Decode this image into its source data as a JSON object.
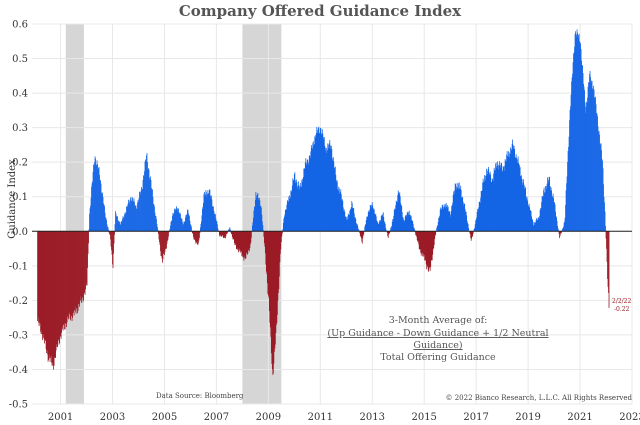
{
  "chart_data": {
    "type": "area",
    "title": "Company Offered Guidance Index",
    "ylabel": "Guidance Index",
    "xlabel": "",
    "ylim": [
      -0.5,
      0.6
    ],
    "xlim": [
      1999.9,
      2023.0
    ],
    "y_ticks": [
      {
        "value": 0.6,
        "label": "0.6"
      },
      {
        "value": 0.5,
        "label": "0.5"
      },
      {
        "value": 0.4,
        "label": "0.4"
      },
      {
        "value": 0.3,
        "label": "0.3"
      },
      {
        "value": 0.2,
        "label": "0.2"
      },
      {
        "value": 0.1,
        "label": "0.1"
      },
      {
        "value": 0.0,
        "label": "0.0"
      },
      {
        "value": -0.1,
        "label": "-0.1"
      },
      {
        "value": -0.2,
        "label": "-0.2"
      },
      {
        "value": -0.3,
        "label": "-0.3"
      },
      {
        "value": -0.4,
        "label": "-0.4"
      },
      {
        "value": -0.5,
        "label": "-0.5"
      }
    ],
    "x_ticks": [
      {
        "value": 2001,
        "label": "2001"
      },
      {
        "value": 2003,
        "label": "2003"
      },
      {
        "value": 2005,
        "label": "2005"
      },
      {
        "value": 2007,
        "label": "2007"
      },
      {
        "value": 2009,
        "label": "2009"
      },
      {
        "value": 2011,
        "label": "2011"
      },
      {
        "value": 2013,
        "label": "2013"
      },
      {
        "value": 2015,
        "label": "2015"
      },
      {
        "value": 2017,
        "label": "2017"
      },
      {
        "value": 2019,
        "label": "2019"
      },
      {
        "value": 2021,
        "label": "2021"
      },
      {
        "value": 2023,
        "label": "2023"
      }
    ],
    "recessions": [
      {
        "start": 2001.2,
        "end": 2001.9
      },
      {
        "start": 2008.0,
        "end": 2009.5
      }
    ],
    "colors": {
      "positive": "#1565e6",
      "negative": "#9b1b26",
      "recession": "#d6d6d6",
      "zero_line": "#222222"
    },
    "series": [
      {
        "name": "3-Month Average Guidance Index",
        "points": [
          [
            2000.1,
            -0.26
          ],
          [
            2000.3,
            -0.3
          ],
          [
            2000.5,
            -0.36
          ],
          [
            2000.7,
            -0.39
          ],
          [
            2000.9,
            -0.32
          ],
          [
            2001.1,
            -0.28
          ],
          [
            2001.3,
            -0.25
          ],
          [
            2001.5,
            -0.24
          ],
          [
            2001.8,
            -0.2
          ],
          [
            2002.0,
            -0.16
          ],
          [
            2002.1,
            0.05
          ],
          [
            2002.3,
            0.22
          ],
          [
            2002.5,
            0.16
          ],
          [
            2002.7,
            0.05
          ],
          [
            2002.9,
            -0.02
          ],
          [
            2003.0,
            -0.1
          ],
          [
            2003.1,
            0.05
          ],
          [
            2003.3,
            0.02
          ],
          [
            2003.5,
            0.06
          ],
          [
            2003.7,
            0.1
          ],
          [
            2003.9,
            0.07
          ],
          [
            2004.1,
            0.12
          ],
          [
            2004.3,
            0.22
          ],
          [
            2004.5,
            0.12
          ],
          [
            2004.7,
            0.02
          ],
          [
            2004.9,
            -0.09
          ],
          [
            2005.1,
            -0.03
          ],
          [
            2005.3,
            0.05
          ],
          [
            2005.5,
            0.07
          ],
          [
            2005.7,
            0.02
          ],
          [
            2005.9,
            0.06
          ],
          [
            2006.1,
            -0.02
          ],
          [
            2006.3,
            -0.04
          ],
          [
            2006.5,
            0.1
          ],
          [
            2006.7,
            0.12
          ],
          [
            2006.9,
            0.06
          ],
          [
            2007.1,
            -0.01
          ],
          [
            2007.3,
            -0.02
          ],
          [
            2007.5,
            0.01
          ],
          [
            2007.7,
            -0.04
          ],
          [
            2007.9,
            -0.06
          ],
          [
            2008.1,
            -0.08
          ],
          [
            2008.3,
            -0.04
          ],
          [
            2008.5,
            0.11
          ],
          [
            2008.7,
            0.08
          ],
          [
            2008.85,
            -0.05
          ],
          [
            2009.0,
            -0.2
          ],
          [
            2009.15,
            -0.42
          ],
          [
            2009.3,
            -0.28
          ],
          [
            2009.45,
            -0.06
          ],
          [
            2009.6,
            0.05
          ],
          [
            2009.8,
            0.1
          ],
          [
            2010.0,
            0.16
          ],
          [
            2010.2,
            0.12
          ],
          [
            2010.4,
            0.19
          ],
          [
            2010.6,
            0.22
          ],
          [
            2010.8,
            0.28
          ],
          [
            2011.0,
            0.3
          ],
          [
            2011.2,
            0.24
          ],
          [
            2011.4,
            0.25
          ],
          [
            2011.6,
            0.15
          ],
          [
            2011.8,
            0.1
          ],
          [
            2012.0,
            0.03
          ],
          [
            2012.2,
            0.08
          ],
          [
            2012.4,
            0.02
          ],
          [
            2012.6,
            -0.03
          ],
          [
            2012.8,
            0.05
          ],
          [
            2013.0,
            0.08
          ],
          [
            2013.2,
            0.02
          ],
          [
            2013.4,
            0.05
          ],
          [
            2013.6,
            -0.02
          ],
          [
            2013.8,
            0.04
          ],
          [
            2014.0,
            0.12
          ],
          [
            2014.2,
            0.03
          ],
          [
            2014.4,
            0.06
          ],
          [
            2014.6,
            0.01
          ],
          [
            2014.8,
            -0.05
          ],
          [
            2015.0,
            -0.08
          ],
          [
            2015.2,
            -0.12
          ],
          [
            2015.4,
            -0.02
          ],
          [
            2015.6,
            0.06
          ],
          [
            2015.8,
            0.08
          ],
          [
            2016.0,
            0.05
          ],
          [
            2016.2,
            0.14
          ],
          [
            2016.4,
            0.12
          ],
          [
            2016.6,
            0.05
          ],
          [
            2016.8,
            -0.03
          ],
          [
            2017.0,
            0.04
          ],
          [
            2017.2,
            0.12
          ],
          [
            2017.4,
            0.18
          ],
          [
            2017.6,
            0.15
          ],
          [
            2017.8,
            0.2
          ],
          [
            2018.0,
            0.18
          ],
          [
            2018.2,
            0.22
          ],
          [
            2018.4,
            0.25
          ],
          [
            2018.6,
            0.2
          ],
          [
            2018.8,
            0.14
          ],
          [
            2019.0,
            0.08
          ],
          [
            2019.2,
            0.02
          ],
          [
            2019.4,
            0.04
          ],
          [
            2019.6,
            0.12
          ],
          [
            2019.8,
            0.15
          ],
          [
            2020.0,
            0.08
          ],
          [
            2020.2,
            -0.02
          ],
          [
            2020.4,
            0.03
          ],
          [
            2020.6,
            0.35
          ],
          [
            2020.8,
            0.58
          ],
          [
            2021.0,
            0.55
          ],
          [
            2021.2,
            0.35
          ],
          [
            2021.35,
            0.45
          ],
          [
            2021.5,
            0.42
          ],
          [
            2021.7,
            0.3
          ],
          [
            2021.85,
            0.2
          ],
          [
            2021.95,
            0.05
          ],
          [
            2022.05,
            -0.15
          ],
          [
            2022.1,
            -0.22
          ]
        ]
      }
    ],
    "end_label": {
      "date": "2/2/22",
      "value": "-0.22"
    },
    "annotations": {
      "legend_line1": "3-Month Average of:",
      "legend_line2": "(Up Guidance - Down Guidance + 1/2 Neutral",
      "legend_line3": "Guidance)",
      "legend_line4": "Total Offering Guidance",
      "source": "Data Source: Bloomberg",
      "copyright": "© 2022 Bianco Research, L.L.C. All Rights Reserved"
    }
  }
}
